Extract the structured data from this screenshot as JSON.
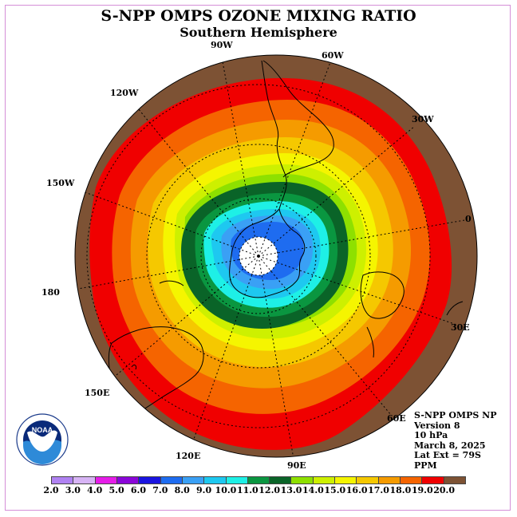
{
  "title": "S-NPP OMPS OZONE MIXING RATIO",
  "subtitle": "Southern Hemisphere",
  "longitude_labels": [
    "90W",
    "60W",
    "30W",
    "0",
    "30E",
    "60E",
    "90E",
    "120E",
    "150E",
    "180",
    "150W",
    "120W"
  ],
  "info_lines": [
    "S-NPP OMPS NP",
    "Version 8",
    "10 hPa",
    "March 8, 2025",
    "Lat Ext = 79S",
    "PPM"
  ],
  "logo": {
    "name": "noaa-logo",
    "text": "NOAA"
  },
  "colorbar": {
    "ticks": [
      "2.0",
      "3.0",
      "4.0",
      "5.0",
      "6.0",
      "7.0",
      "8.0",
      "9.0",
      "10.0",
      "11.0",
      "12.0",
      "13.0",
      "14.0",
      "15.0",
      "16.0",
      "17.0",
      "18.0",
      "19.0",
      "20.0"
    ],
    "colors": [
      "#b082f2",
      "#d7b4f5",
      "#e61de8",
      "#8a06d8",
      "#1a14e0",
      "#1e6cf0",
      "#3aa0f5",
      "#1ec8f0",
      "#1ef0e6",
      "#0a9640",
      "#0a6428",
      "#8ee000",
      "#cdf000",
      "#f5f500",
      "#f5c800",
      "#f59b00",
      "#f56400",
      "#f00000",
      "#7d5234"
    ]
  },
  "map_data": {
    "projection": "south-polar-stereographic",
    "variable": "ozone mixing ratio",
    "units": "PPM",
    "pressure_level_hpa": 10,
    "date": "March 8, 2025",
    "lat_extent": "79S",
    "contour_levels": [
      2,
      3,
      4,
      5,
      6,
      7,
      8,
      9,
      10,
      11,
      12,
      13,
      14,
      15,
      16,
      17,
      18,
      19,
      20
    ],
    "field_description_values": {
      "pole_min_ppm_approx": 6,
      "outer_max_ppm_approx": 20
    }
  }
}
